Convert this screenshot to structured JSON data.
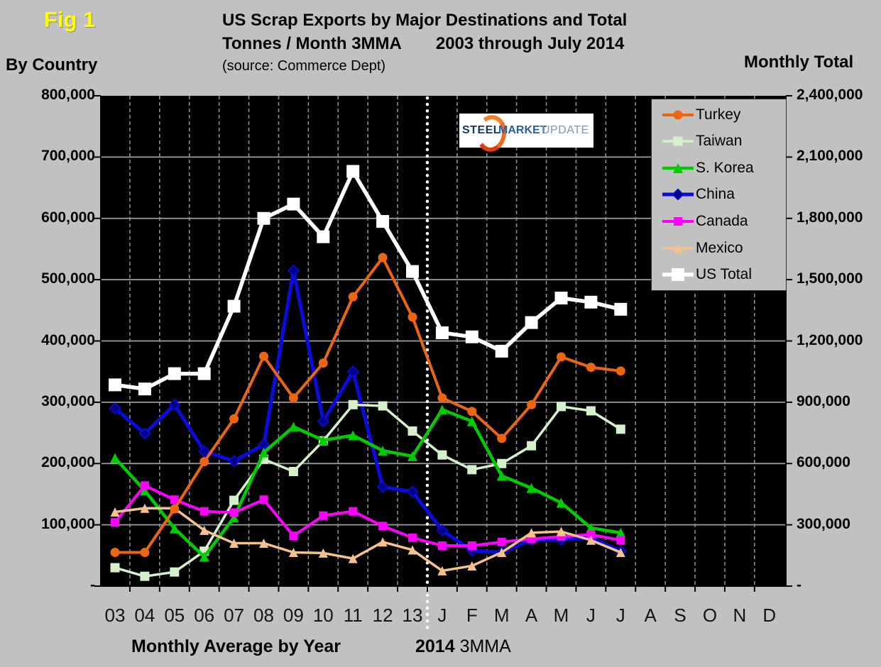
{
  "figure_label": "Fig 1",
  "header": {
    "title_line1": "US Scrap Exports by Major Destinations and Total",
    "title_line2a": "Tonnes / Month 3MMA",
    "title_line2b": "2003 through July 2014",
    "source": "(source:  Commerce Dept)",
    "left_axis_title": "By Country",
    "right_axis_title": "Monthly Total"
  },
  "logo": {
    "word1": "STEEL",
    "word2": "MARKET",
    "word3": "UPDATE"
  },
  "captions": {
    "left": "Monthly Average by Year",
    "right_bold": "2014",
    "right_normal": " 3MMA"
  },
  "colors": {
    "background": "#C1C1C1",
    "plot_background": "#000000",
    "grid_h": "#9E9E9E",
    "grid_v": "#8F8F8F",
    "divider": "#FFFFFF",
    "axis": "#000000",
    "fig_label": "#FFFF00"
  },
  "chart_data": {
    "type": "line",
    "categories": [
      "03",
      "04",
      "05",
      "06",
      "07",
      "08",
      "09",
      "10",
      "11",
      "12",
      "13",
      "J",
      "F",
      "M",
      "A",
      "M",
      "J",
      "J",
      "A",
      "S",
      "O",
      "N",
      "D"
    ],
    "x_axis_note": "03-13 are monthly averages by year; J-J are Jan-Jul 2014 monthly 3MMA",
    "y_axis_left": {
      "title": "By Country",
      "max": 800000,
      "tick_labels": [
        "800,000",
        "700,000",
        "600,000",
        "500,000",
        "400,000",
        "300,000",
        "200,000",
        "100,000",
        "-"
      ]
    },
    "y_axis_right": {
      "title": "Monthly Total",
      "max": 2400000,
      "tick_labels": [
        "2,400,000",
        "2,100,000",
        "1,800,000",
        "1,500,000",
        "1,200,000",
        "900,000",
        "600,000",
        "300,000",
        "-"
      ]
    },
    "draw_order": [
      "US Total",
      "China",
      "Taiwan",
      "S. Korea",
      "Canada",
      "Mexico",
      "Turkey"
    ],
    "series": [
      {
        "name": "Turkey",
        "color": "#EC6511",
        "marker": "circle",
        "marker_size": 13,
        "line_width": 4,
        "axis": "left",
        "values": [
          55000,
          55000,
          126000,
          203000,
          273000,
          375000,
          307000,
          364000,
          472000,
          536000,
          439000,
          307000,
          285000,
          241000,
          296000,
          374000,
          357000,
          351000,
          null,
          null,
          null,
          null,
          null
        ]
      },
      {
        "name": "Taiwan",
        "color": "#D5F1CC",
        "marker": "square",
        "marker_size": 13,
        "line_width": 3.5,
        "axis": "left",
        "values": [
          30000,
          16000,
          23000,
          57000,
          140000,
          207000,
          187000,
          237000,
          296000,
          294000,
          253000,
          214000,
          190000,
          200000,
          229000,
          293000,
          286000,
          256000,
          null,
          null,
          null,
          null,
          null
        ]
      },
      {
        "name": "S. Korea",
        "color": "#00CC00",
        "marker": "triangle",
        "marker_size": 14,
        "line_width": 4.5,
        "axis": "left",
        "values": [
          209000,
          156000,
          94000,
          48000,
          112000,
          218000,
          260000,
          238000,
          246000,
          221000,
          212000,
          288000,
          269000,
          180000,
          160000,
          136000,
          95000,
          87000,
          null,
          null,
          null,
          null,
          null
        ]
      },
      {
        "name": "China",
        "color": "#0B0BDF",
        "marker": "diamond",
        "marker_size": 13,
        "marker_fill": "#00008C",
        "line_width": 5,
        "axis": "left",
        "values": [
          290000,
          249000,
          296000,
          220000,
          204000,
          231000,
          515000,
          269000,
          350000,
          162000,
          154000,
          91000,
          58000,
          55000,
          76000,
          76000,
          79000,
          57000,
          null,
          null,
          null,
          null,
          null
        ]
      },
      {
        "name": "Canada",
        "color": "#FF00FF",
        "marker": "square",
        "marker_size": 12,
        "line_width": 4,
        "axis": "left",
        "values": [
          104000,
          164000,
          141000,
          122000,
          120000,
          141000,
          82000,
          115000,
          122000,
          98000,
          79000,
          66000,
          66000,
          72000,
          77000,
          81000,
          84000,
          75000,
          null,
          null,
          null,
          null,
          null
        ]
      },
      {
        "name": "Mexico",
        "color": "#F5C28E",
        "marker": "triangle",
        "marker_size": 13,
        "line_width": 3.5,
        "axis": "left",
        "values": [
          121000,
          127000,
          127000,
          91000,
          70000,
          70000,
          55000,
          54000,
          45000,
          72000,
          59000,
          25000,
          33000,
          55000,
          87000,
          89000,
          75000,
          55000,
          null,
          null,
          null,
          null,
          null
        ]
      },
      {
        "name": "US Total",
        "color": "#FFFFFF",
        "marker": "square",
        "marker_size": 18,
        "line_width": 5.5,
        "axis": "right",
        "values": [
          985000,
          965000,
          1040000,
          1040000,
          1370000,
          1800000,
          1870000,
          1710000,
          2030000,
          1785000,
          1540000,
          1240000,
          1220000,
          1150000,
          1290000,
          1410000,
          1390000,
          1355000,
          null,
          null,
          null,
          null,
          null
        ]
      }
    ]
  }
}
